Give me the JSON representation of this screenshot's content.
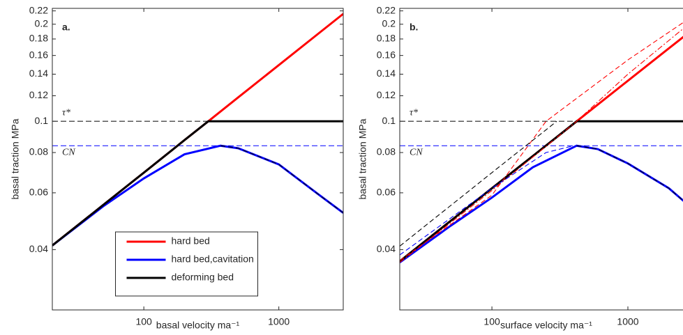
{
  "chart_data": [
    {
      "type": "line",
      "label": "a.",
      "xlabel": "basal velocity ma⁻¹",
      "ylabel": "basal traction MPa",
      "xscale": "log",
      "yscale": "log",
      "xlim": [
        21,
        3000
      ],
      "ylim": [
        0.026,
        0.224
      ],
      "xticks": [
        100,
        1000
      ],
      "yticks": [
        0.04,
        0.06,
        0.08,
        0.1,
        0.12,
        0.14,
        0.16,
        0.18,
        0.2,
        0.22
      ],
      "legend": "lower center",
      "hlines": [
        {
          "value": 0.1,
          "label": "τ*",
          "color": "#000000"
        },
        {
          "value": 0.084,
          "label": "CN",
          "color": "#0000ff"
        }
      ],
      "series": [
        {
          "name": "hard bed",
          "color": "#ff0000",
          "style": "solid",
          "x": [
            21,
            50,
            100,
            200,
            300,
            500,
            1000,
            2000,
            3000
          ],
          "values": [
            0.0412,
            0.055,
            0.0693,
            0.0874,
            0.1,
            0.1186,
            0.1494,
            0.1882,
            0.2154
          ]
        },
        {
          "name": "hard bed,cavitation",
          "color": "#0000ff",
          "style": "solid",
          "x": [
            21,
            50,
            100,
            200,
            370,
            500,
            1000,
            2000,
            3000
          ],
          "values": [
            0.0412,
            0.0545,
            0.0665,
            0.079,
            0.084,
            0.0825,
            0.0735,
            0.059,
            0.052
          ]
        },
        {
          "name": "deforming bed",
          "color": "#000000",
          "style": "solid",
          "x": [
            21,
            50,
            100,
            200,
            300,
            500,
            1000,
            2000,
            3000
          ],
          "values": [
            0.0412,
            0.055,
            0.0693,
            0.0874,
            0.1,
            0.1,
            0.1,
            0.1,
            0.1
          ]
        },
        {
          "color": "#000000",
          "style": "dashed",
          "x": [
            370,
            500,
            1000,
            2000,
            3000
          ],
          "values": [
            0.084,
            0.0825,
            0.0735,
            0.059,
            0.052
          ]
        }
      ]
    },
    {
      "type": "line",
      "label": "b.",
      "xlabel": "surface velocity ma⁻¹",
      "ylabel": "basal traction MPa",
      "xscale": "log",
      "yscale": "log",
      "xlim": [
        21,
        3000
      ],
      "ylim": [
        0.026,
        0.224
      ],
      "xticks": [
        100,
        1000
      ],
      "yticks": [
        0.04,
        0.06,
        0.08,
        0.1,
        0.12,
        0.14,
        0.16,
        0.18,
        0.2,
        0.22
      ],
      "hlines": [
        {
          "value": 0.1,
          "label": "τ*",
          "color": "#000000"
        },
        {
          "value": 0.084,
          "label": "CN",
          "color": "#0000ff"
        }
      ],
      "series": [
        {
          "color": "#ff0000",
          "style": "solid",
          "x": [
            21,
            50,
            100,
            200,
            420,
            1000,
            2000,
            3000
          ],
          "values": [
            0.0368,
            0.0492,
            0.062,
            0.078,
            0.1,
            0.1336,
            0.1683,
            0.1926
          ]
        },
        {
          "color": "#0000ff",
          "style": "solid",
          "x": [
            21,
            50,
            100,
            200,
            420,
            600,
            1000,
            2000,
            3000
          ],
          "values": [
            0.0365,
            0.0475,
            0.058,
            0.072,
            0.084,
            0.082,
            0.074,
            0.062,
            0.0535
          ]
        },
        {
          "color": "#000000",
          "style": "solid",
          "x": [
            21,
            50,
            100,
            200,
            420,
            1000,
            2000,
            3000
          ],
          "values": [
            0.0368,
            0.0492,
            0.062,
            0.078,
            0.1,
            0.1,
            0.1,
            0.1
          ]
        },
        {
          "color": "#ff0000",
          "style": "dashed",
          "x": [
            21,
            100,
            250,
            1000,
            3000
          ],
          "values": [
            0.037,
            0.059,
            0.1,
            0.155,
            0.212
          ]
        },
        {
          "color": "#ff0000",
          "style": "dashdot",
          "x": [
            21,
            100,
            420,
            1000,
            3000
          ],
          "values": [
            0.0365,
            0.061,
            0.1,
            0.14,
            0.205
          ]
        },
        {
          "color": "#0000ff",
          "style": "dashed",
          "x": [
            21,
            100,
            250,
            400
          ],
          "values": [
            0.0385,
            0.062,
            0.08,
            0.084
          ]
        },
        {
          "color": "#000000",
          "style": "dashed",
          "x": [
            21,
            100,
            300
          ],
          "values": [
            0.041,
            0.0693,
            0.1
          ]
        },
        {
          "color": "#000000",
          "style": "dashed",
          "x": [
            420,
            600,
            1000,
            2000,
            3000
          ],
          "values": [
            0.084,
            0.082,
            0.074,
            0.062,
            0.0535
          ]
        }
      ]
    }
  ]
}
